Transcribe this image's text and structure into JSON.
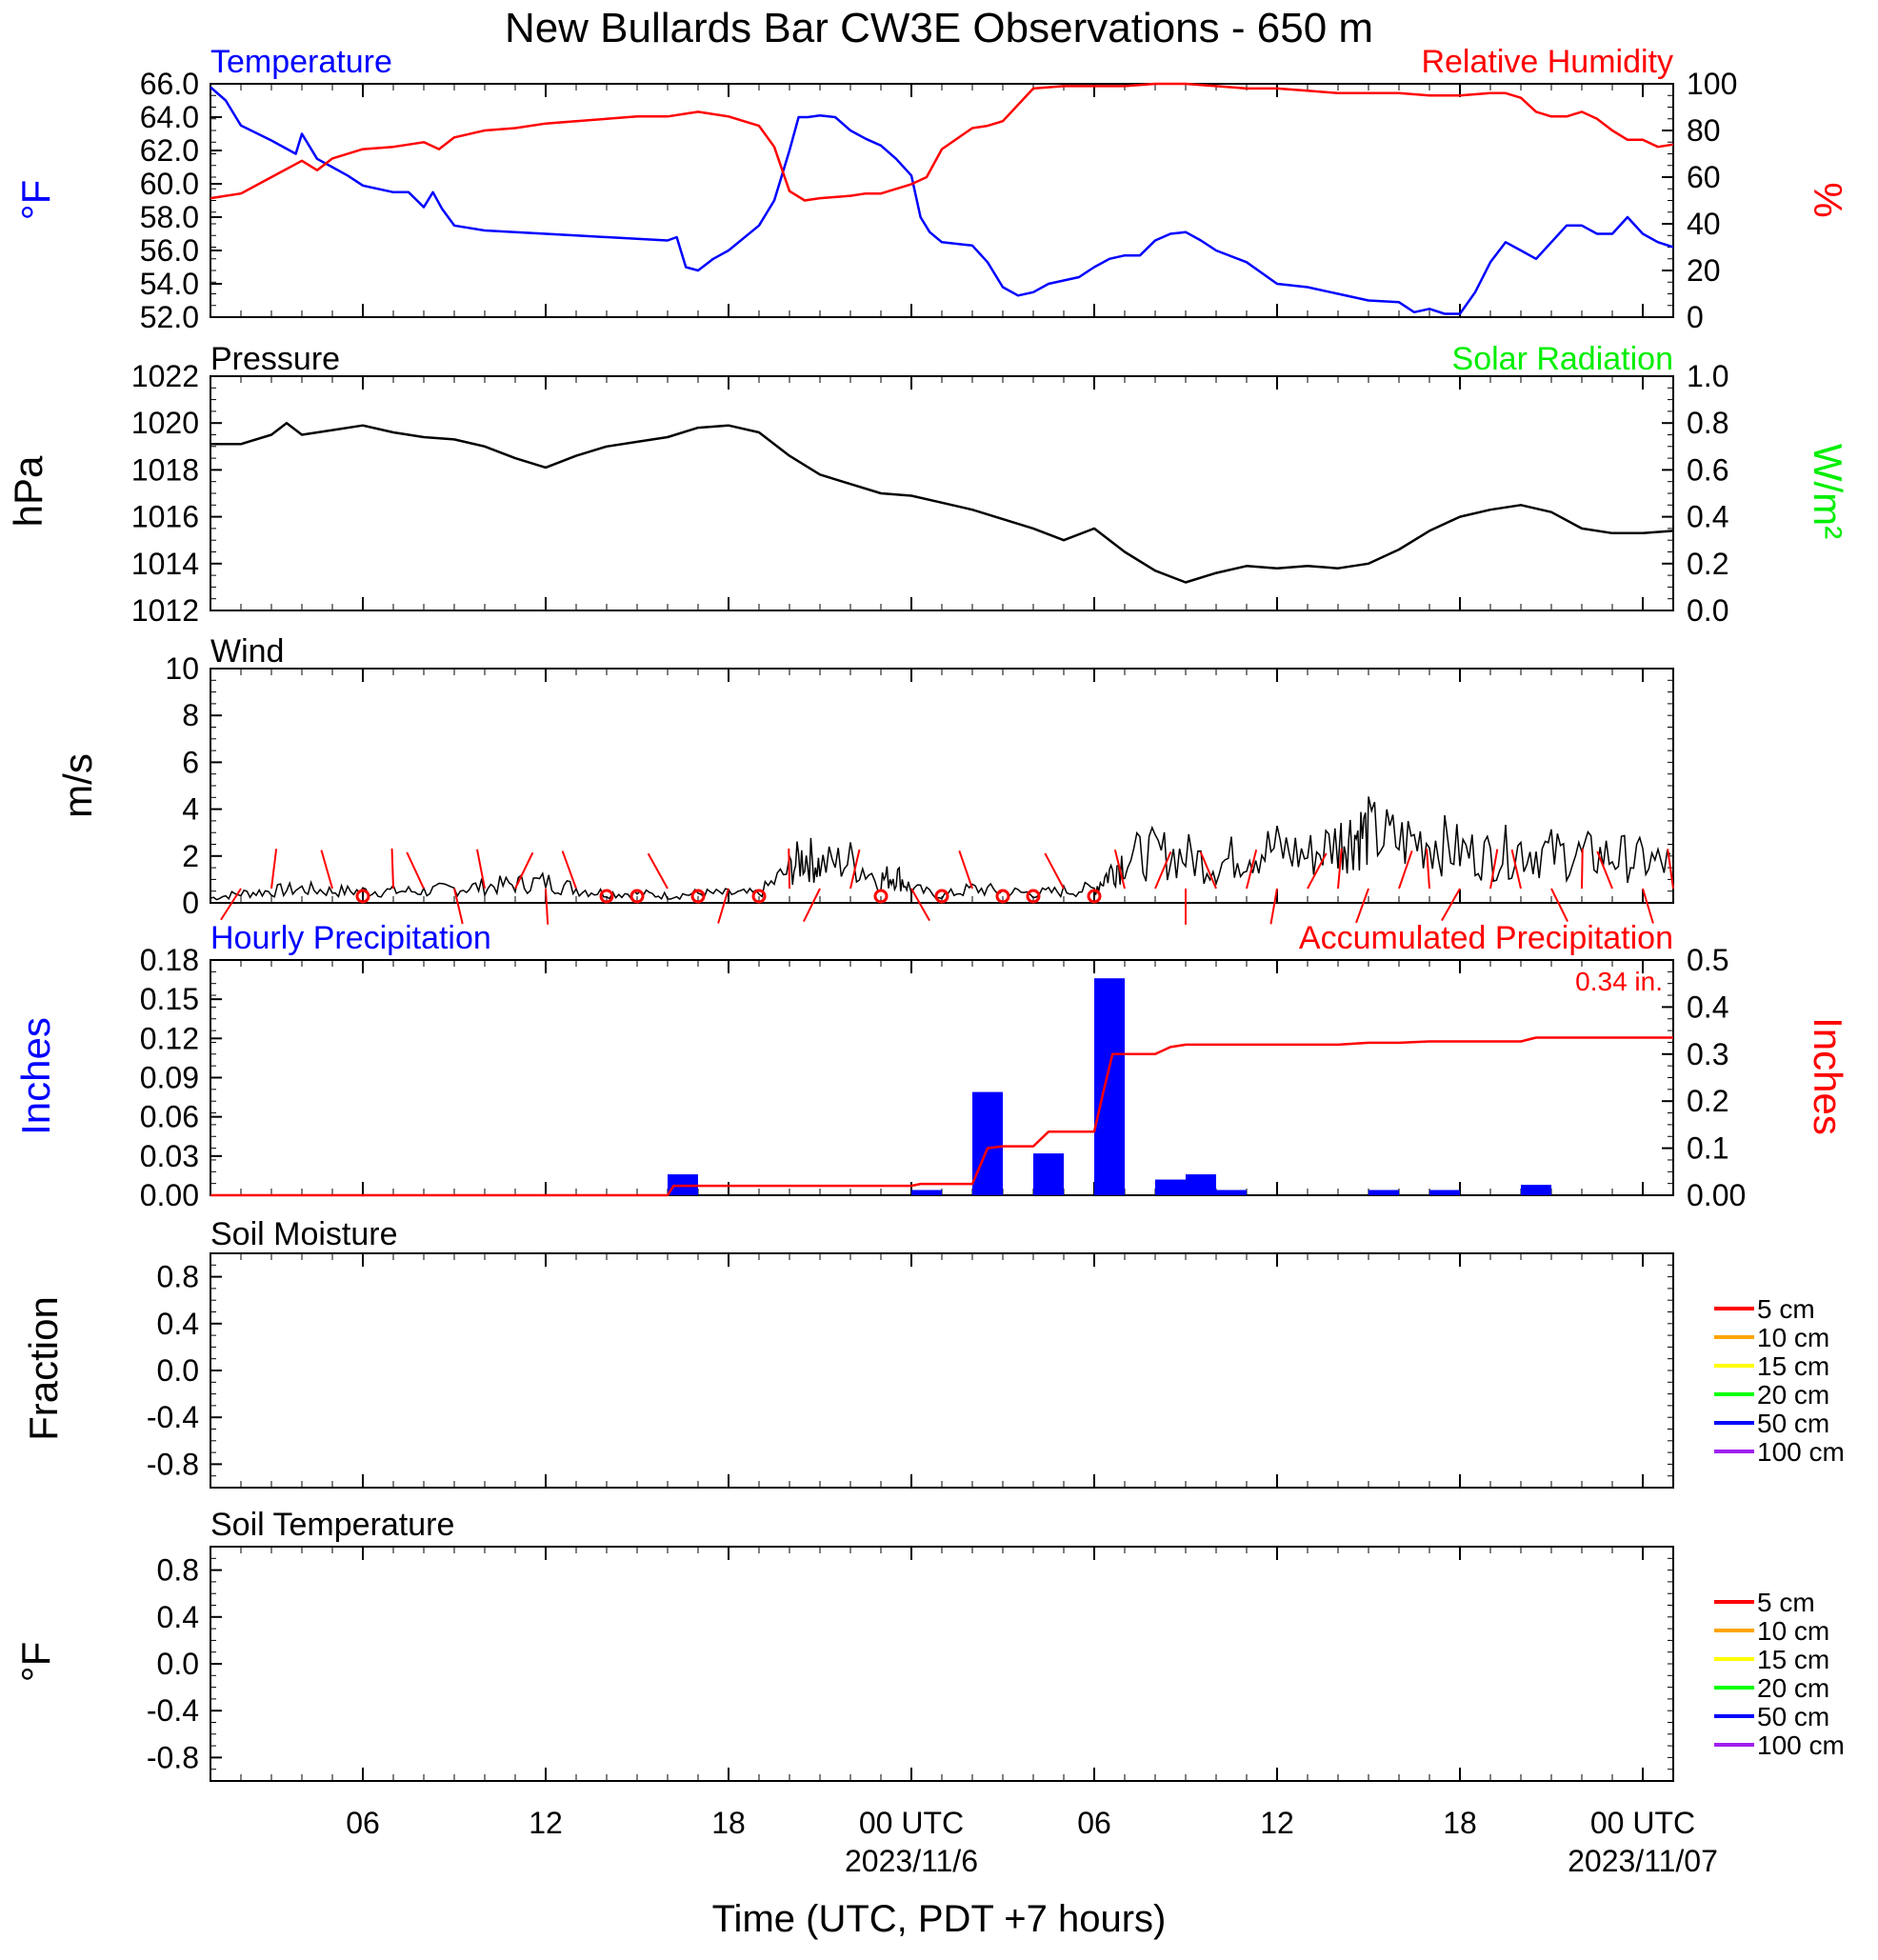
{
  "title": "New Bullards Bar CW3E Observations - 650 m",
  "x_axis": {
    "label": "Time (UTC, PDT +7 hours)",
    "ticks": [
      {
        "hour": 6,
        "label": "06",
        "sub": ""
      },
      {
        "hour": 12,
        "label": "12",
        "sub": ""
      },
      {
        "hour": 18,
        "label": "18",
        "sub": ""
      },
      {
        "hour": 24,
        "label": "00 UTC",
        "sub": "2023/11/6"
      },
      {
        "hour": 30,
        "label": "06",
        "sub": ""
      },
      {
        "hour": 36,
        "label": "12",
        "sub": ""
      },
      {
        "hour": 42,
        "label": "18",
        "sub": ""
      },
      {
        "hour": 48,
        "label": "00 UTC",
        "sub": "2023/11/07"
      }
    ]
  },
  "colors": {
    "temperature": "#0000ff",
    "humidity": "#ff0000",
    "pressure": "#000000",
    "solar": "#00ee00",
    "wind": "#000000",
    "barb": "#ff0000",
    "hourly_precip": "#0000ff",
    "accum_precip": "#ff0000"
  },
  "panels": {
    "temp_rh": {
      "left_title": "Temperature",
      "right_title": "Relative Humidity",
      "left_unit": "°F",
      "right_unit": "%",
      "left_ticks": [
        "52.0",
        "54.0",
        "56.0",
        "58.0",
        "60.0",
        "62.0",
        "64.0",
        "66.0"
      ],
      "right_ticks": [
        "0",
        "20",
        "40",
        "60",
        "80",
        "100"
      ]
    },
    "pressure": {
      "left_title": "Pressure",
      "right_title": "Solar Radiation",
      "left_unit": "hPa",
      "right_unit": "W/m²",
      "left_ticks": [
        "1012",
        "1014",
        "1016",
        "1018",
        "1020",
        "1022"
      ],
      "right_ticks": [
        "0.0",
        "0.2",
        "0.4",
        "0.6",
        "0.8",
        "1.0"
      ]
    },
    "wind": {
      "left_title": "Wind",
      "left_unit": "m/s",
      "left_ticks": [
        "0",
        "2",
        "4",
        "6",
        "8",
        "10"
      ]
    },
    "precip": {
      "left_title": "Hourly Precipitation",
      "right_title": "Accumulated Precipitation",
      "left_unit": "Inches",
      "right_unit": "Inches",
      "total_label": "0.34 in.",
      "left_ticks": [
        "0.00",
        "0.03",
        "0.06",
        "0.09",
        "0.12",
        "0.15",
        "0.18"
      ],
      "right_ticks": [
        "0.00",
        "0.1",
        "0.2",
        "0.3",
        "0.4",
        "0.5"
      ]
    },
    "soil_moisture": {
      "left_title": "Soil Moisture",
      "left_unit": "Fraction",
      "left_ticks": [
        "-0.8",
        "-0.4",
        "0.0",
        "0.4",
        "0.8"
      ],
      "legend": [
        {
          "name": "5 cm",
          "color": "#ff0000"
        },
        {
          "name": "10 cm",
          "color": "#ffa500"
        },
        {
          "name": "15 cm",
          "color": "#ffff00"
        },
        {
          "name": "20 cm",
          "color": "#00ff00"
        },
        {
          "name": "50 cm",
          "color": "#0000ff"
        },
        {
          "name": "100 cm",
          "color": "#a020f0"
        }
      ]
    },
    "soil_temp": {
      "left_title": "Soil Temperature",
      "left_unit": "°F",
      "left_ticks": [
        "-0.8",
        "-0.4",
        "0.0",
        "0.4",
        "0.8"
      ],
      "legend": [
        {
          "name": "5 cm",
          "color": "#ff0000"
        },
        {
          "name": "10 cm",
          "color": "#ffa500"
        },
        {
          "name": "15 cm",
          "color": "#ffff00"
        },
        {
          "name": "20 cm",
          "color": "#00ff00"
        },
        {
          "name": "50 cm",
          "color": "#0000ff"
        },
        {
          "name": "100 cm",
          "color": "#a020f0"
        }
      ]
    }
  },
  "chart_data": [
    {
      "type": "line",
      "panel": "temp_rh",
      "xlabel": "Time (UTC, PDT +7 hours)",
      "ylabel": "°F",
      "x_unit": "hours since 2023/11/5 00 UTC",
      "xlim": [
        1,
        49
      ],
      "ylim": [
        52,
        66
      ],
      "y2lim": [
        0,
        100
      ],
      "series": [
        {
          "name": "Temperature",
          "axis": "left",
          "x": [
            1,
            1.5,
            2,
            3,
            3.8,
            4,
            4.5,
            5,
            5.5,
            6,
            7,
            7.5,
            8,
            8.3,
            8.6,
            9,
            10,
            12,
            13,
            15,
            16,
            16.3,
            16.6,
            17,
            17.5,
            18,
            19,
            19.5,
            20,
            20.3,
            20.6,
            21,
            21.5,
            22,
            22.5,
            23,
            23.5,
            24,
            24.3,
            24.6,
            25,
            26,
            26.5,
            27,
            27.5,
            28,
            28.5,
            29,
            29.5,
            30,
            30.5,
            31,
            31.5,
            32,
            32.5,
            33,
            33.5,
            34,
            35,
            36,
            37,
            38,
            39,
            40,
            40.5,
            41,
            41.5,
            42,
            42.5,
            43,
            43.5,
            44,
            44.5,
            45,
            45.5,
            46,
            46.5,
            47,
            47.5,
            48,
            48.5,
            49
          ],
          "y": [
            65.8,
            65,
            63.5,
            62.6,
            61.8,
            63,
            61.5,
            61,
            60.5,
            59.9,
            59.5,
            59.5,
            58.6,
            59.5,
            58.5,
            57.5,
            57.2,
            57,
            56.9,
            56.7,
            56.6,
            56.8,
            55,
            54.8,
            55.5,
            56,
            57.5,
            59,
            62,
            64,
            64,
            64.1,
            64,
            63.2,
            62.7,
            62.3,
            61.5,
            60.5,
            58,
            57.1,
            56.5,
            56.3,
            55.3,
            53.8,
            53.3,
            53.5,
            54,
            54.2,
            54.4,
            55,
            55.5,
            55.7,
            55.7,
            56.6,
            57,
            57.1,
            56.6,
            56,
            55.3,
            54,
            53.8,
            53.4,
            53,
            52.9,
            52.3,
            52.5,
            52.2,
            52.2,
            53.5,
            55.3,
            56.5,
            56,
            55.5,
            56.5,
            57.5,
            57.5,
            57,
            57,
            58,
            57,
            56.5,
            56.2
          ]
        },
        {
          "name": "Relative Humidity",
          "axis": "right",
          "x": [
            1,
            2,
            3,
            4,
            4.5,
            5,
            6,
            7,
            8,
            8.5,
            9,
            10,
            11,
            12,
            13,
            14,
            15,
            16,
            17,
            18,
            19,
            19.5,
            20,
            20.5,
            21,
            22,
            22.5,
            23,
            24,
            24.5,
            25,
            26,
            26.5,
            27,
            28,
            29,
            30,
            31,
            32,
            33,
            34,
            35,
            36,
            37,
            38,
            39,
            40,
            41,
            42,
            43,
            43.5,
            44,
            44.5,
            45,
            45.5,
            46,
            46.5,
            47,
            47.5,
            48,
            48.5,
            49
          ],
          "y": [
            51,
            53,
            60,
            67,
            63,
            68,
            72,
            73,
            75,
            72,
            77,
            80,
            81,
            83,
            84,
            85,
            86,
            86,
            88,
            86,
            82,
            73,
            54,
            50,
            51,
            52,
            53,
            53,
            57,
            60,
            72,
            81,
            82,
            84,
            98,
            99,
            99,
            99,
            100,
            100,
            99,
            98,
            98,
            97,
            96,
            96,
            96,
            95,
            95,
            96,
            96,
            94,
            88,
            86,
            86,
            88,
            85,
            80,
            76,
            76,
            73,
            74
          ]
        }
      ]
    },
    {
      "type": "line",
      "panel": "pressure",
      "xlim": [
        1,
        49
      ],
      "ylim": [
        1012,
        1022
      ],
      "y2lim": [
        0,
        1
      ],
      "series": [
        {
          "name": "Pressure",
          "x": [
            1,
            2,
            3,
            3.5,
            4,
            5,
            6,
            7,
            8,
            9,
            10,
            11,
            12,
            13,
            14,
            15,
            16,
            17,
            18,
            19,
            20,
            21,
            22,
            23,
            24,
            25,
            26,
            27,
            28,
            29,
            30,
            31,
            32,
            33,
            34,
            35,
            36,
            37,
            38,
            39,
            40,
            41,
            42,
            43,
            44,
            45,
            46,
            47,
            48,
            49
          ],
          "y": [
            1019.1,
            1019.1,
            1019.5,
            1020,
            1019.5,
            1019.7,
            1019.9,
            1019.6,
            1019.4,
            1019.3,
            1019,
            1018.5,
            1018.1,
            1018.6,
            1019,
            1019.2,
            1019.4,
            1019.8,
            1019.9,
            1019.6,
            1018.6,
            1017.8,
            1017.4,
            1017,
            1016.9,
            1016.6,
            1016.3,
            1015.9,
            1015.5,
            1015,
            1015.5,
            1014.5,
            1013.7,
            1013.2,
            1013.6,
            1013.9,
            1013.8,
            1013.9,
            1013.8,
            1014,
            1014.6,
            1015.4,
            1016,
            1016.3,
            1016.5,
            1016.2,
            1015.5,
            1015.3,
            1015.3,
            1015.4
          ]
        }
      ]
    },
    {
      "type": "line",
      "panel": "wind",
      "xlim": [
        1,
        49
      ],
      "ylim": [
        0,
        10
      ],
      "ylabel": "m/s",
      "series": [
        {
          "name": "Wind",
          "x": [
            1,
            2,
            3,
            4,
            5,
            6,
            7,
            8,
            9,
            10,
            11,
            12,
            13,
            14,
            15,
            16,
            17,
            18,
            19,
            20,
            20.5,
            21,
            22,
            23,
            23.5,
            24,
            25,
            26,
            27,
            28,
            29,
            30,
            30.5,
            31,
            32,
            33,
            34,
            35,
            36,
            37,
            38,
            38.5,
            39,
            40,
            41,
            42,
            43,
            44,
            45,
            46,
            47,
            48,
            49
          ],
          "y": [
            0.2,
            0.4,
            0.5,
            0.6,
            0.5,
            0.5,
            0.5,
            0.5,
            0.6,
            0.7,
            0.8,
            0.9,
            0.6,
            0.4,
            0.4,
            0.3,
            0.4,
            0.4,
            0.4,
            1.4,
            2.0,
            1.6,
            1.8,
            1.0,
            1.2,
            0.6,
            0.3,
            0.6,
            0.5,
            0.4,
            0.5,
            0.6,
            1.3,
            1.9,
            2.1,
            2.0,
            1.6,
            2.2,
            2.3,
            2.0,
            2.6,
            2.9,
            3.0,
            2.6,
            2.7,
            2.2,
            2.0,
            2.3,
            2.1,
            2.0,
            2.0,
            1.8,
            1.6
          ]
        }
      ],
      "barbs_hours": [
        2,
        3,
        5,
        6,
        7,
        8,
        9,
        10,
        11,
        12,
        13,
        14,
        15,
        16,
        17,
        18,
        19,
        20,
        21,
        22,
        23,
        24,
        25,
        26,
        27,
        28,
        29,
        30,
        31,
        32,
        33,
        34,
        35,
        36,
        37,
        38,
        39,
        40,
        41,
        42,
        43,
        44,
        45,
        46,
        47,
        48,
        49
      ]
    },
    {
      "type": "bar",
      "panel": "precip",
      "xlim": [
        1,
        49
      ],
      "ylim": [
        0,
        0.18
      ],
      "y2lim": [
        0,
        0.5
      ],
      "series": [
        {
          "name": "Hourly Precipitation",
          "x": [
            16.5,
            24.5,
            26.5,
            28.5,
            30.5,
            32.5,
            33.5,
            34.5,
            39.5,
            41.5,
            44.5
          ],
          "y": [
            0.016,
            0.004,
            0.079,
            0.032,
            0.166,
            0.012,
            0.016,
            0.004,
            0.004,
            0.004,
            0.008
          ]
        }
      ]
    },
    {
      "type": "line",
      "panel": "precip",
      "series": [
        {
          "name": "Accumulated Precipitation",
          "x": [
            1,
            16,
            16.2,
            17,
            24,
            24.3,
            26,
            26.5,
            27,
            28,
            28.5,
            29,
            30,
            30.3,
            30.6,
            31,
            32,
            32.5,
            33,
            34,
            35,
            36,
            37,
            38,
            39,
            40,
            41,
            42,
            43,
            44,
            44.5,
            45,
            46,
            47,
            48,
            49
          ],
          "y": [
            0,
            0,
            0.02,
            0.02,
            0.02,
            0.024,
            0.024,
            0.1,
            0.104,
            0.104,
            0.135,
            0.135,
            0.135,
            0.22,
            0.3,
            0.3,
            0.3,
            0.315,
            0.32,
            0.32,
            0.32,
            0.32,
            0.32,
            0.32,
            0.324,
            0.324,
            0.327,
            0.327,
            0.327,
            0.327,
            0.335,
            0.335,
            0.335,
            0.335,
            0.335,
            0.335
          ]
        }
      ]
    }
  ]
}
